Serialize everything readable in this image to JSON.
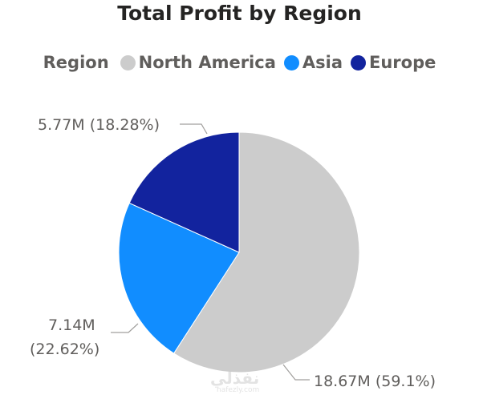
{
  "chart_data": {
    "type": "pie",
    "title": "Total Profit by Region",
    "legend": {
      "title": "Region",
      "position": "top"
    },
    "series": [
      {
        "name": "North America",
        "value": 18.67,
        "percent": 59.1,
        "color": "#cccccc",
        "label": "18.67M (59.1%)"
      },
      {
        "name": "Asia",
        "value": 7.14,
        "percent": 22.62,
        "color": "#118dff",
        "label_line1": "7.14M",
        "label_line2": "(22.62%)"
      },
      {
        "name": "Europe",
        "value": 5.77,
        "percent": 18.28,
        "color": "#12239e",
        "label": "5.77M (18.28%)"
      }
    ]
  },
  "watermark": {
    "main": "نفذلي",
    "sub": "nafezly.com"
  }
}
